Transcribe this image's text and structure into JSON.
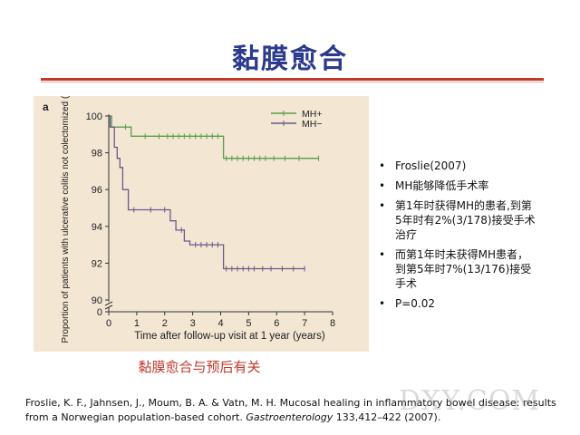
{
  "slide": {
    "title": "黏膜愈合",
    "caption": "黏膜愈合与预后有关",
    "bullets": [
      "Froslie(2007)",
      "MH能够降低手术率",
      "第1年时获得MH的患者,到第5年时有2%(3/178)接受手术治疗",
      "而第1年时未获得MH患者，到第5年时7%(13/176)接受手术",
      "P=0.02"
    ],
    "reference": {
      "text": "Froslie, K. F., Jahnsen, J., Moum, B. A. & Vatn, M. H. Mucosal healing in inflammatory bowel disease: results from a Norwegian population-based cohort. ",
      "journal": "Gastroenterology",
      "tail": " 133,412–422 (2007)."
    },
    "watermark": "DXY.COM"
  },
  "colors": {
    "title": "#2b3a8c",
    "rule": "#c0392b",
    "caption": "#c0392b",
    "panel": "#f3e6d3",
    "mh_positive": "#5a9e4a",
    "mh_negative": "#6a5a8c"
  },
  "chart_data": {
    "type": "line",
    "panel_label": "a",
    "xlabel": "Time after follow-up visit at 1 year (years)",
    "ylabel": "Proportion of patients with ulcerative colitis not colectomized (%)",
    "xlim": [
      0,
      8
    ],
    "ylim": [
      90,
      100
    ],
    "x_ticks": [
      "0",
      "1",
      "2",
      "3",
      "4",
      "5",
      "6",
      "7",
      "8"
    ],
    "y_ticks": [
      "90",
      "92",
      "94",
      "96",
      "98",
      "100"
    ],
    "y_axis_break": true,
    "legend_position": "top-right",
    "series": [
      {
        "name": "MH+",
        "x": [
          0,
          0.1,
          0.1,
          0.8,
          0.8,
          4.1,
          4.1,
          7.5
        ],
        "y": [
          100,
          100,
          99.4,
          99.4,
          98.9,
          98.9,
          97.7,
          97.7
        ],
        "censor_x": [
          0.6,
          1.3,
          1.8,
          2.1,
          2.3,
          2.5,
          2.7,
          2.9,
          3.1,
          3.3,
          3.5,
          3.7,
          3.9,
          4.2,
          4.4,
          4.6,
          4.8,
          5.0,
          5.2,
          5.4,
          5.6,
          5.9,
          6.3,
          6.8,
          7.5
        ]
      },
      {
        "name": "MH−",
        "x": [
          0,
          0.05,
          0.05,
          0.2,
          0.2,
          0.3,
          0.3,
          0.4,
          0.4,
          0.5,
          0.5,
          0.7,
          0.7,
          2.2,
          2.2,
          2.4,
          2.4,
          2.7,
          2.7,
          2.9,
          2.9,
          4.1,
          4.1,
          7.0
        ],
        "y": [
          100,
          100,
          99.4,
          99.4,
          98.3,
          98.3,
          97.7,
          97.7,
          97.2,
          97.2,
          96.0,
          96.0,
          94.9,
          94.9,
          94.3,
          94.3,
          93.8,
          93.8,
          93.2,
          93.2,
          93.0,
          93.0,
          91.7,
          91.7
        ],
        "censor_x": [
          0.9,
          1.5,
          2.0,
          2.6,
          3.1,
          3.3,
          3.5,
          3.7,
          3.9,
          4.2,
          4.4,
          4.6,
          4.8,
          5.0,
          5.2,
          5.5,
          5.8,
          6.2,
          6.6,
          7.0
        ]
      }
    ]
  }
}
